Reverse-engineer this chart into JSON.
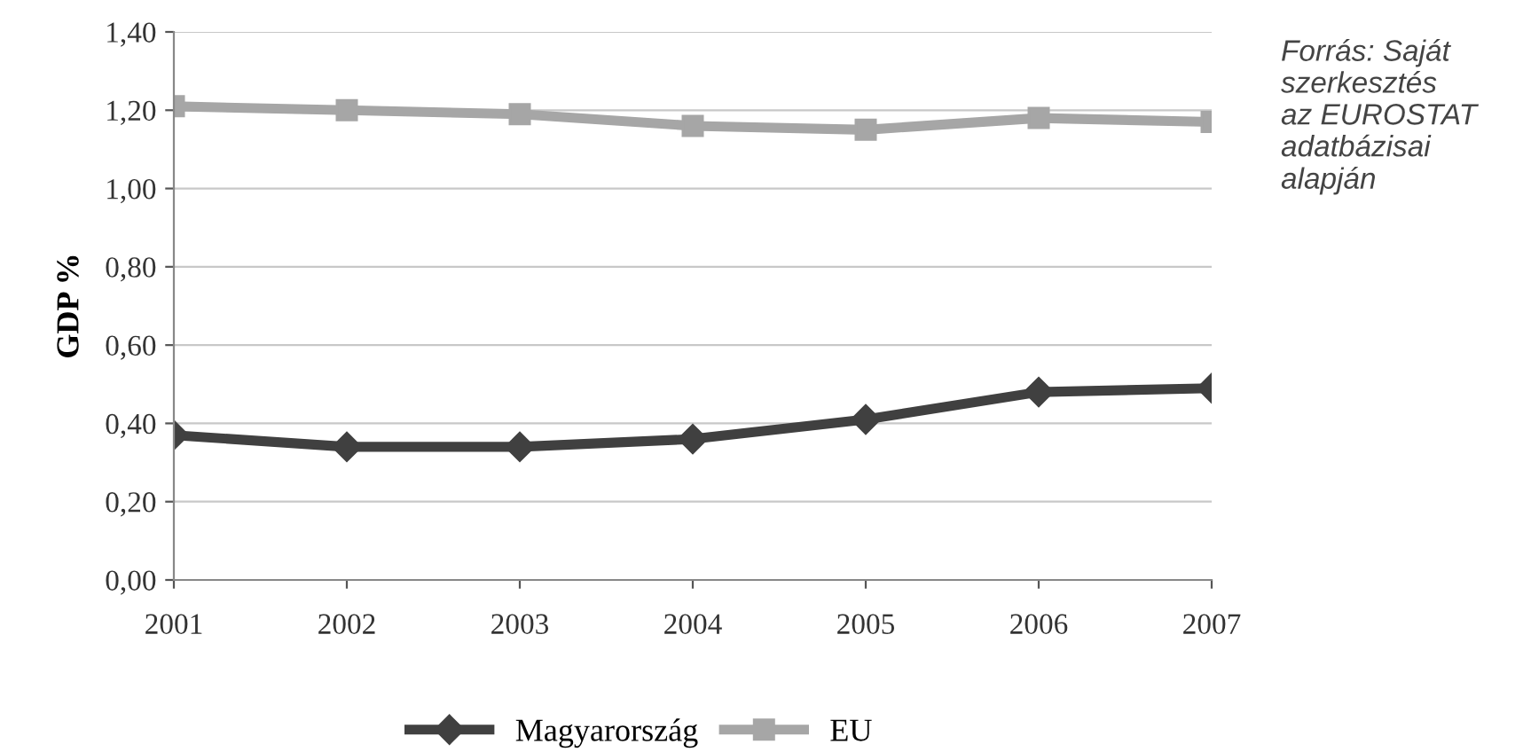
{
  "chart_data": {
    "type": "line",
    "ylabel": "GDP %",
    "categories": [
      "2001",
      "2002",
      "2003",
      "2004",
      "2005",
      "2006",
      "2007"
    ],
    "series": [
      {
        "name": "Magyarország",
        "color": "#404040",
        "marker": "diamond",
        "values": [
          0.37,
          0.34,
          0.34,
          0.36,
          0.41,
          0.48,
          0.49
        ]
      },
      {
        "name": "EU",
        "color": "#a6a6a6",
        "marker": "square",
        "values": [
          1.21,
          1.2,
          1.19,
          1.16,
          1.15,
          1.18,
          1.17
        ]
      }
    ],
    "ylim": [
      0,
      1.4
    ],
    "yticks": [
      {
        "value": 0,
        "label": "0,00"
      },
      {
        "value": 0.2,
        "label": "0,20"
      },
      {
        "value": 0.4,
        "label": "0,40"
      },
      {
        "value": 0.6,
        "label": "0,60"
      },
      {
        "value": 0.8,
        "label": "0,80"
      },
      {
        "value": 1.0,
        "label": "1,00"
      },
      {
        "value": 1.2,
        "label": "1,20"
      },
      {
        "value": 1.4,
        "label": "1,40"
      }
    ],
    "grid": "y",
    "legend": "bottom",
    "annotations": [
      "Forrás: Saját\nszerkesztés\naz EUROSTAT\nadatbázisai\nalapján"
    ]
  }
}
